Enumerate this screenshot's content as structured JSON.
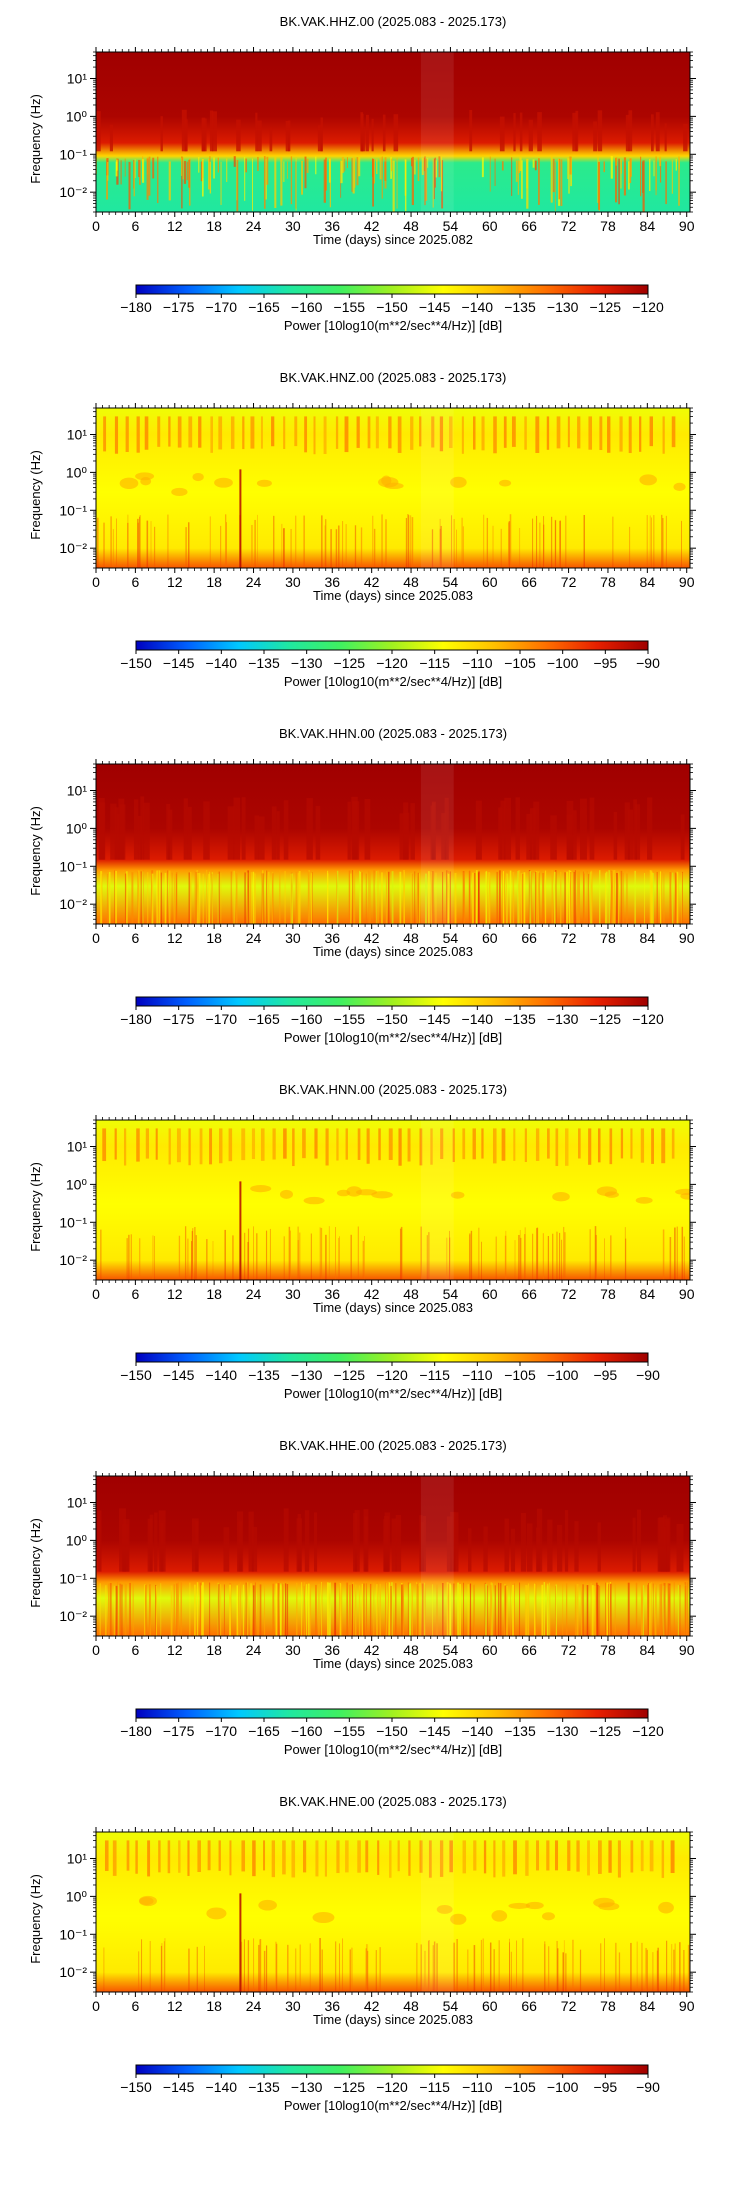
{
  "chart_data": [
    {
      "type": "heatmap",
      "title": "BK.VAK.HHZ.00 (2025.083 - 2025.173)",
      "xlabel": "Time (days) since 2025.082",
      "ylabel": "Frequency (Hz)",
      "x_ticks": [
        "0",
        "6",
        "12",
        "18",
        "24",
        "30",
        "36",
        "42",
        "48",
        "54",
        "60",
        "66",
        "72",
        "78",
        "84",
        "90"
      ],
      "y_ticks": [
        "10¹",
        "10⁰",
        "10⁻¹",
        "10⁻²"
      ],
      "y_scale": "log",
      "xlim": [
        0,
        90.5
      ],
      "colorbar": {
        "label": "Power [10log10(m**2/sec**4/Hz)] [dB]",
        "ticks": [
          "−180",
          "−175",
          "−170",
          "−165",
          "−160",
          "−155",
          "−150",
          "−145",
          "−140",
          "−135",
          "−130",
          "−125",
          "−120"
        ],
        "range": [
          -180,
          -120
        ]
      },
      "profile": "hh_z",
      "rows": [
        {
          "freq": 50,
          "power": -120
        },
        {
          "freq": 1.0,
          "power": -121
        },
        {
          "freq": 0.2,
          "power": -125
        },
        {
          "freq": 0.09,
          "power": -140
        },
        {
          "freq": 0.06,
          "power": -160
        },
        {
          "freq": 0.003,
          "power": -162
        }
      ]
    },
    {
      "type": "heatmap",
      "title": "BK.VAK.HNZ.00 (2025.083 - 2025.173)",
      "xlabel": "Time (days) since 2025.083",
      "ylabel": "Frequency (Hz)",
      "x_ticks": [
        "0",
        "6",
        "12",
        "18",
        "24",
        "30",
        "36",
        "42",
        "48",
        "54",
        "60",
        "66",
        "72",
        "78",
        "84",
        "90"
      ],
      "y_ticks": [
        "10¹",
        "10⁰",
        "10⁻¹",
        "10⁻²"
      ],
      "y_scale": "log",
      "xlim": [
        0,
        90.5
      ],
      "colorbar": {
        "label": "Power [10log10(m**2/sec**4/Hz)] [dB]",
        "ticks": [
          "−150",
          "−145",
          "−140",
          "−135",
          "−130",
          "−125",
          "−120",
          "−115",
          "−110",
          "−105",
          "−100",
          "−95",
          "−90"
        ],
        "range": [
          -150,
          -90
        ]
      },
      "profile": "hn",
      "rows": [
        {
          "freq": 50,
          "power": -115
        },
        {
          "freq": 10,
          "power": -112
        },
        {
          "freq": 0.3,
          "power": -114
        },
        {
          "freq": 0.01,
          "power": -112
        },
        {
          "freq": 0.003,
          "power": -100
        }
      ]
    },
    {
      "type": "heatmap",
      "title": "BK.VAK.HHN.00 (2025.083 - 2025.173)",
      "xlabel": "Time (days) since 2025.083",
      "ylabel": "Frequency (Hz)",
      "x_ticks": [
        "0",
        "6",
        "12",
        "18",
        "24",
        "30",
        "36",
        "42",
        "48",
        "54",
        "60",
        "66",
        "72",
        "78",
        "84",
        "90"
      ],
      "y_ticks": [
        "10¹",
        "10⁰",
        "10⁻¹",
        "10⁻²"
      ],
      "y_scale": "log",
      "xlim": [
        0,
        90.5
      ],
      "colorbar": {
        "label": "Power [10log10(m**2/sec**4/Hz)] [dB]",
        "ticks": [
          "−180",
          "−175",
          "−170",
          "−165",
          "−160",
          "−155",
          "−150",
          "−145",
          "−140",
          "−135",
          "−130",
          "−125",
          "−120"
        ],
        "range": [
          -180,
          -120
        ]
      },
      "profile": "hh_h",
      "rows": [
        {
          "freq": 50,
          "power": -120
        },
        {
          "freq": 1.0,
          "power": -121
        },
        {
          "freq": 0.15,
          "power": -125
        },
        {
          "freq": 0.08,
          "power": -135
        },
        {
          "freq": 0.03,
          "power": -146
        },
        {
          "freq": 0.003,
          "power": -132
        }
      ]
    },
    {
      "type": "heatmap",
      "title": "BK.VAK.HNN.00 (2025.083 - 2025.173)",
      "xlabel": "Time (days) since 2025.083",
      "ylabel": "Frequency (Hz)",
      "x_ticks": [
        "0",
        "6",
        "12",
        "18",
        "24",
        "30",
        "36",
        "42",
        "48",
        "54",
        "60",
        "66",
        "72",
        "78",
        "84",
        "90"
      ],
      "y_ticks": [
        "10¹",
        "10⁰",
        "10⁻¹",
        "10⁻²"
      ],
      "y_scale": "log",
      "xlim": [
        0,
        90.5
      ],
      "colorbar": {
        "label": "Power [10log10(m**2/sec**4/Hz)] [dB]",
        "ticks": [
          "−150",
          "−145",
          "−140",
          "−135",
          "−130",
          "−125",
          "−120",
          "−115",
          "−110",
          "−105",
          "−100",
          "−95",
          "−90"
        ],
        "range": [
          -150,
          -90
        ]
      },
      "profile": "hn",
      "rows": [
        {
          "freq": 50,
          "power": -115
        },
        {
          "freq": 10,
          "power": -112
        },
        {
          "freq": 0.3,
          "power": -114
        },
        {
          "freq": 0.01,
          "power": -112
        },
        {
          "freq": 0.003,
          "power": -100
        }
      ]
    },
    {
      "type": "heatmap",
      "title": "BK.VAK.HHE.00 (2025.083 - 2025.173)",
      "xlabel": "Time (days) since 2025.083",
      "ylabel": "Frequency (Hz)",
      "x_ticks": [
        "0",
        "6",
        "12",
        "18",
        "24",
        "30",
        "36",
        "42",
        "48",
        "54",
        "60",
        "66",
        "72",
        "78",
        "84",
        "90"
      ],
      "y_ticks": [
        "10¹",
        "10⁰",
        "10⁻¹",
        "10⁻²"
      ],
      "y_scale": "log",
      "xlim": [
        0,
        90.5
      ],
      "colorbar": {
        "label": "Power [10log10(m**2/sec**4/Hz)] [dB]",
        "ticks": [
          "−180",
          "−175",
          "−170",
          "−165",
          "−160",
          "−155",
          "−150",
          "−145",
          "−140",
          "−135",
          "−130",
          "−125",
          "−120"
        ],
        "range": [
          -180,
          -120
        ]
      },
      "profile": "hh_h",
      "rows": [
        {
          "freq": 50,
          "power": -120
        },
        {
          "freq": 1.0,
          "power": -121
        },
        {
          "freq": 0.15,
          "power": -125
        },
        {
          "freq": 0.08,
          "power": -135
        },
        {
          "freq": 0.03,
          "power": -146
        },
        {
          "freq": 0.003,
          "power": -132
        }
      ]
    },
    {
      "type": "heatmap",
      "title": "BK.VAK.HNE.00 (2025.083 - 2025.173)",
      "xlabel": "Time (days) since 2025.083",
      "ylabel": "Frequency (Hz)",
      "x_ticks": [
        "0",
        "6",
        "12",
        "18",
        "24",
        "30",
        "36",
        "42",
        "48",
        "54",
        "60",
        "66",
        "72",
        "78",
        "84",
        "90"
      ],
      "y_ticks": [
        "10¹",
        "10⁰",
        "10⁻¹",
        "10⁻²"
      ],
      "y_scale": "log",
      "xlim": [
        0,
        90.5
      ],
      "colorbar": {
        "label": "Power [10log10(m**2/sec**4/Hz)] [dB]",
        "ticks": [
          "−150",
          "−145",
          "−140",
          "−135",
          "−130",
          "−125",
          "−120",
          "−115",
          "−110",
          "−105",
          "−100",
          "−95",
          "−90"
        ],
        "range": [
          -150,
          -90
        ]
      },
      "profile": "hn",
      "rows": [
        {
          "freq": 50,
          "power": -115
        },
        {
          "freq": 10,
          "power": -112
        },
        {
          "freq": 0.3,
          "power": -114
        },
        {
          "freq": 0.01,
          "power": -112
        },
        {
          "freq": 0.003,
          "power": -100
        }
      ]
    }
  ],
  "colormap": [
    "#0000c0",
    "#0060ff",
    "#00c8ff",
    "#20e8a0",
    "#40f060",
    "#a0f020",
    "#ffff00",
    "#ffc000",
    "#ff7000",
    "#e82000",
    "#a00000"
  ]
}
